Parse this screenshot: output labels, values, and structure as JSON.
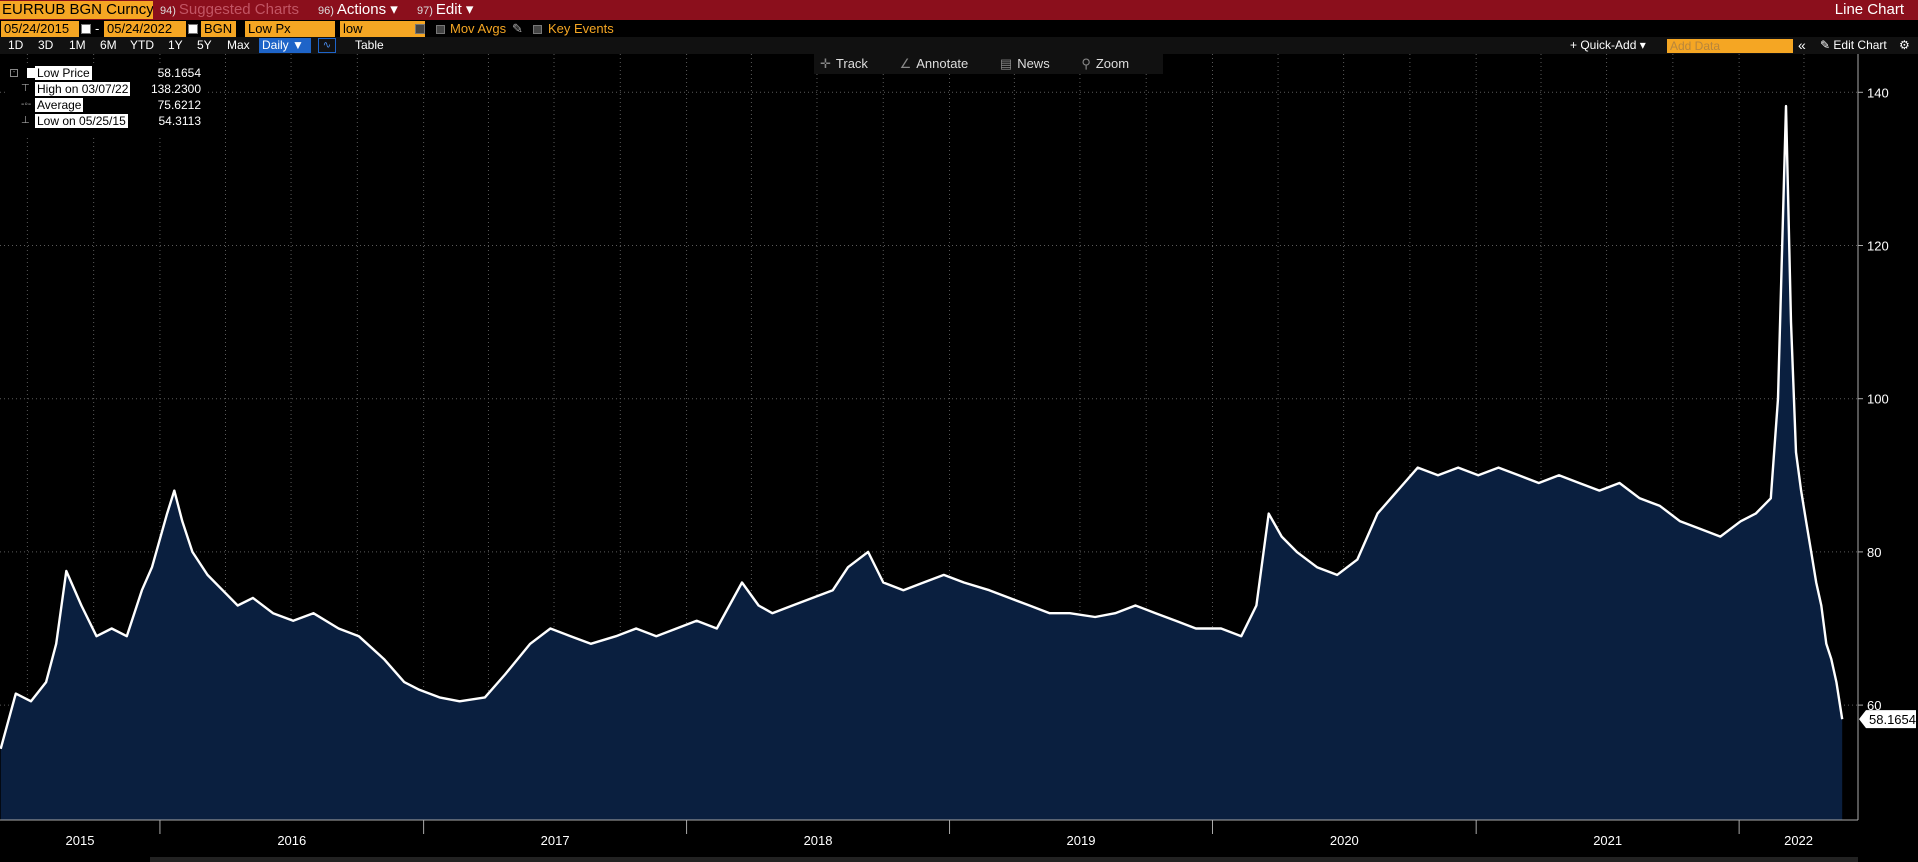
{
  "topbar": {
    "ticker": "EURRUB BGN Curncy",
    "suggested_num": "94)",
    "suggested": "Suggested Charts",
    "actions_num": "96)",
    "actions": "Actions ▾",
    "edit_num": "97)",
    "edit": "Edit ▾",
    "chart_type": "Line Chart"
  },
  "fields": {
    "start_date": "05/24/2015",
    "dash": "-",
    "end_date": "05/24/2022",
    "source": "BGN",
    "price_field": "Low Px",
    "type": "low",
    "mov_avgs": "Mov Avgs",
    "key_events": "Key Events"
  },
  "periods": [
    "1D",
    "3D",
    "1M",
    "6M",
    "YTD",
    "1Y",
    "5Y",
    "Max"
  ],
  "frequency": "Daily ▼",
  "table_label": "Table",
  "right_controls": {
    "quick_add": "+ Quick-Add ▾",
    "add_data_placeholder": "Add Data",
    "collapse": "«",
    "edit_chart": "✎ Edit Chart",
    "settings": "⚙"
  },
  "toolbar": {
    "track": "Track",
    "annotate": "Annotate",
    "news": "News",
    "zoom": "Zoom"
  },
  "legend": {
    "rows": [
      {
        "label": "Low Price",
        "value": "58.1654"
      },
      {
        "label": "High on 03/07/22",
        "value": "138.2300"
      },
      {
        "label": "Average",
        "value": "75.6212"
      },
      {
        "label": "Low on 05/25/15",
        "value": "54.3113"
      }
    ]
  },
  "colors": {
    "line": "#ffffff",
    "fill": "#0a1f3f",
    "grid": "#5a5a5a",
    "accent": "#f5a623",
    "header": "#8b0f1c"
  },
  "chart_data": {
    "type": "area",
    "series_name": "Low Price",
    "ylim": [
      45,
      145
    ],
    "yticks": [
      60,
      80,
      100,
      120,
      140
    ],
    "year_ticks": [
      "2015",
      "2016",
      "2017",
      "2018",
      "2019",
      "2020",
      "2021",
      "2022"
    ],
    "last_value": "58.1654",
    "x": [
      "2015-05-25",
      "2015-06-15",
      "2015-07-06",
      "2015-07-27",
      "2015-08-10",
      "2015-08-24",
      "2015-09-14",
      "2015-10-05",
      "2015-10-26",
      "2015-11-16",
      "2015-12-07",
      "2015-12-21",
      "2016-01-11",
      "2016-01-21",
      "2016-02-01",
      "2016-02-15",
      "2016-03-07",
      "2016-03-28",
      "2016-04-18",
      "2016-05-09",
      "2016-06-06",
      "2016-07-04",
      "2016-08-01",
      "2016-09-05",
      "2016-10-03",
      "2016-11-07",
      "2016-12-05",
      "2016-12-26",
      "2017-01-23",
      "2017-02-20",
      "2017-03-27",
      "2017-04-24",
      "2017-05-29",
      "2017-06-26",
      "2017-07-24",
      "2017-08-21",
      "2017-09-25",
      "2017-10-23",
      "2017-11-20",
      "2017-12-18",
      "2018-01-15",
      "2018-02-12",
      "2018-03-19",
      "2018-04-11",
      "2018-04-30",
      "2018-05-28",
      "2018-06-25",
      "2018-07-23",
      "2018-08-13",
      "2018-09-10",
      "2018-10-01",
      "2018-10-29",
      "2018-11-26",
      "2018-12-24",
      "2019-01-21",
      "2019-02-25",
      "2019-03-25",
      "2019-04-22",
      "2019-05-20",
      "2019-06-17",
      "2019-07-22",
      "2019-08-19",
      "2019-09-16",
      "2019-10-14",
      "2019-11-11",
      "2019-12-09",
      "2020-01-13",
      "2020-02-10",
      "2020-03-02",
      "2020-03-19",
      "2020-04-06",
      "2020-04-27",
      "2020-05-25",
      "2020-06-22",
      "2020-07-20",
      "2020-08-17",
      "2020-09-14",
      "2020-10-12",
      "2020-11-09",
      "2020-12-07",
      "2021-01-04",
      "2021-02-01",
      "2021-03-01",
      "2021-03-29",
      "2021-04-26",
      "2021-05-24",
      "2021-06-21",
      "2021-07-19",
      "2021-08-16",
      "2021-09-13",
      "2021-10-11",
      "2021-11-08",
      "2021-12-06",
      "2022-01-03",
      "2022-01-24",
      "2022-02-14",
      "2022-02-24",
      "2022-03-07",
      "2022-03-14",
      "2022-03-21",
      "2022-03-28",
      "2022-04-04",
      "2022-04-11",
      "2022-04-18",
      "2022-04-25",
      "2022-05-02",
      "2022-05-09",
      "2022-05-16",
      "2022-05-24"
    ],
    "y": [
      54.3,
      61.5,
      60.5,
      63,
      68,
      77.5,
      73,
      69,
      70,
      69,
      75,
      78,
      85,
      88,
      84,
      80,
      77,
      75,
      73,
      74,
      72,
      71,
      72,
      70,
      69,
      66,
      63,
      62,
      61,
      60.5,
      61,
      64,
      68,
      70,
      69,
      68,
      69,
      70,
      69,
      70,
      71,
      70,
      76,
      73,
      72,
      73,
      74,
      75,
      78,
      80,
      76,
      75,
      76,
      77,
      76,
      75,
      74,
      73,
      72,
      72,
      71.5,
      72,
      73,
      72,
      71,
      70,
      70,
      69,
      73,
      85,
      82,
      80,
      78,
      77,
      79,
      85,
      88,
      91,
      90,
      91,
      90,
      91,
      90,
      89,
      90,
      89,
      88,
      89,
      87,
      86,
      84,
      83,
      82,
      84,
      85,
      87,
      100,
      138.2,
      110,
      93,
      88,
      84,
      80,
      76,
      73,
      68,
      66,
      63,
      58.1654
    ]
  }
}
